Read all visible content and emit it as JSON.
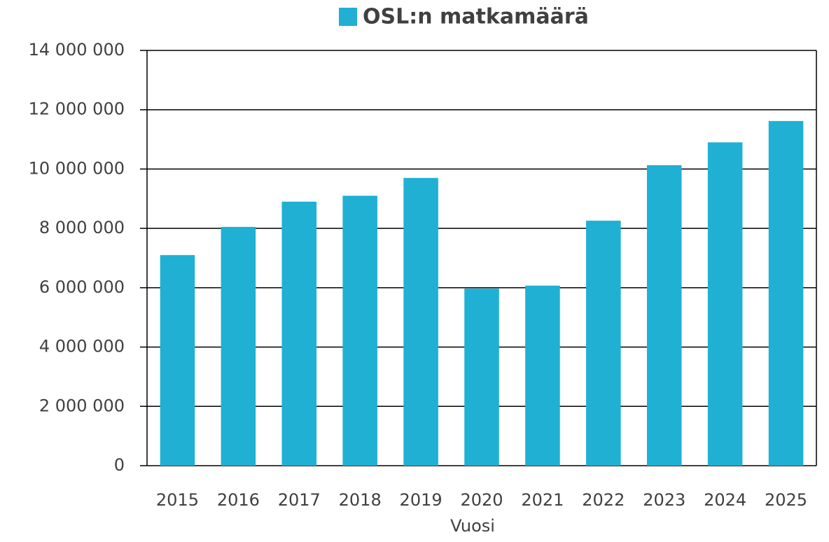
{
  "chart_data": {
    "type": "bar",
    "categories": [
      "2015",
      "2016",
      "2017",
      "2018",
      "2019",
      "2020",
      "2021",
      "2022",
      "2023",
      "2024",
      "2025"
    ],
    "series": [
      {
        "name": "OSL:n matkamäärä",
        "color": "#1fb0d4",
        "values": [
          7100000,
          8050000,
          8900000,
          9100000,
          9700000,
          5970000,
          6070000,
          8260000,
          10130000,
          10900000,
          11620000
        ]
      }
    ],
    "x_label": "Vuosi",
    "ylim": [
      0,
      14000000
    ],
    "yticks": [
      {
        "value": 0,
        "label": "0"
      },
      {
        "value": 2000000,
        "label": "2 000 000"
      },
      {
        "value": 4000000,
        "label": "4 000 000"
      },
      {
        "value": 6000000,
        "label": "6 000 000"
      },
      {
        "value": 8000000,
        "label": "8 000 000"
      },
      {
        "value": 10000000,
        "label": "10 000 000"
      },
      {
        "value": 12000000,
        "label": "12 000 000"
      },
      {
        "value": 14000000,
        "label": "14 000 000"
      }
    ],
    "grid": true,
    "legend": "top"
  }
}
